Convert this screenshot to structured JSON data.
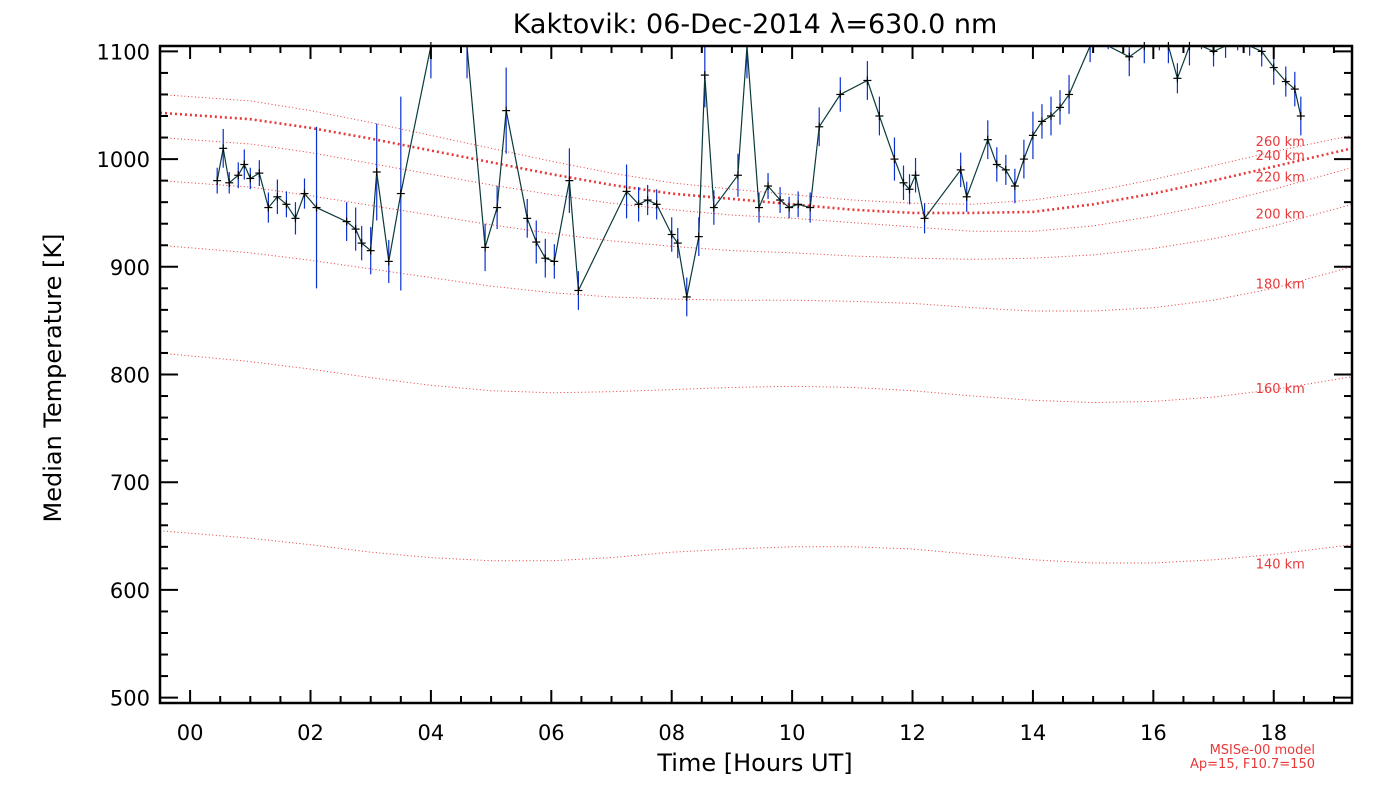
{
  "chart_data": {
    "type": "line",
    "title": "Kaktovik: 06-Dec-2014 λ=630.0 nm",
    "xlabel": "Time [Hours UT]",
    "ylabel": "Median Temperature [K]",
    "xlim": [
      -0.5,
      19.3
    ],
    "ylim": [
      495,
      1105
    ],
    "x_ticks": [
      0,
      2,
      4,
      6,
      8,
      10,
      12,
      14,
      16,
      18
    ],
    "x_tick_labels": [
      "00",
      "02",
      "04",
      "06",
      "08",
      "10",
      "12",
      "14",
      "16",
      "18"
    ],
    "y_ticks": [
      500,
      600,
      700,
      800,
      900,
      1000,
      1100
    ],
    "y_tick_labels": [
      "500",
      "600",
      "700",
      "800",
      "900",
      "1000",
      "1100"
    ],
    "grid": false,
    "colors": {
      "observed": "#0a2fd0",
      "connector": "#0b3a3a",
      "markers": "#000000",
      "model": "#e8393a"
    },
    "series": [
      {
        "style": "observed with error bars",
        "x": [
          0.45,
          0.55,
          0.65,
          0.8,
          0.9,
          1.0,
          1.15,
          1.3,
          1.45,
          1.6,
          1.75,
          1.9,
          2.1,
          2.6,
          2.75,
          2.85,
          3.0,
          3.1,
          3.3,
          3.5,
          4.0,
          4.6,
          4.9,
          5.1,
          5.25,
          5.6,
          5.75,
          5.9,
          6.05,
          6.3,
          6.45,
          7.25,
          7.45,
          7.6,
          7.75,
          8.0,
          8.1,
          8.25,
          8.45,
          8.55,
          8.7,
          9.1,
          9.25,
          9.45,
          9.6,
          9.8,
          9.95,
          10.1,
          10.3,
          10.45,
          10.8,
          11.25,
          11.45,
          11.7,
          11.85,
          11.95,
          12.05,
          12.2,
          12.8,
          12.9,
          13.25,
          13.4,
          13.55,
          13.7,
          13.85,
          14.0,
          14.15,
          14.3,
          14.45,
          14.6,
          14.95,
          15.25,
          15.6,
          15.85,
          16.1,
          16.25,
          16.4,
          16.6,
          16.8,
          17.0,
          17.2,
          17.4,
          17.6,
          17.8,
          18.0,
          18.2,
          18.35,
          18.45
        ],
        "y": [
          980,
          1010,
          978,
          985,
          995,
          982,
          987,
          955,
          965,
          958,
          945,
          968,
          955,
          942,
          935,
          922,
          915,
          988,
          905,
          968,
          1105,
          1115,
          918,
          955,
          1045,
          945,
          923,
          908,
          905,
          980,
          878,
          970,
          958,
          962,
          958,
          930,
          922,
          872,
          928,
          1078,
          955,
          985,
          1115,
          955,
          975,
          962,
          955,
          958,
          955,
          1030,
          1060,
          1073,
          1040,
          1000,
          978,
          972,
          985,
          945,
          990,
          965,
          1018,
          995,
          990,
          975,
          1000,
          1022,
          1035,
          1040,
          1048,
          1060,
          1110,
          1120,
          1095,
          1105,
          1115,
          1105,
          1075,
          1105,
          1118,
          1100,
          1110,
          1115,
          1110,
          1100,
          1085,
          1072,
          1065,
          1040
        ],
        "error": [
          12,
          18,
          10,
          12,
          14,
          10,
          12,
          14,
          16,
          12,
          15,
          14,
          75,
          18,
          20,
          16,
          22,
          45,
          20,
          90,
          30,
          40,
          22,
          20,
          40,
          18,
          20,
          18,
          16,
          30,
          18,
          25,
          16,
          14,
          14,
          16,
          14,
          18,
          18,
          30,
          16,
          20,
          40,
          14,
          12,
          12,
          10,
          12,
          14,
          18,
          16,
          18,
          18,
          20,
          16,
          14,
          16,
          14,
          16,
          14,
          18,
          16,
          14,
          16,
          18,
          22,
          16,
          18,
          16,
          18,
          20,
          18,
          18,
          16,
          14,
          16,
          14,
          18,
          16,
          14,
          16,
          14,
          14,
          14,
          16,
          14,
          16,
          18
        ]
      },
      {
        "name": "140 km",
        "style": "model",
        "x": [
          -0.5,
          1,
          2,
          3,
          4,
          5,
          6,
          7,
          8,
          9,
          10,
          11,
          12,
          13,
          14,
          15,
          16,
          17,
          18,
          19.3
        ],
        "y": [
          655,
          648,
          642,
          635,
          630,
          627,
          627,
          630,
          635,
          638,
          640,
          640,
          638,
          633,
          628,
          625,
          625,
          628,
          633,
          642
        ]
      },
      {
        "name": "160 km",
        "style": "model",
        "x": [
          -0.5,
          1,
          2,
          3,
          4,
          5,
          6,
          7,
          8,
          9,
          10,
          11,
          12,
          13,
          14,
          15,
          16,
          17,
          18,
          19.3
        ],
        "y": [
          820,
          812,
          805,
          797,
          790,
          785,
          783,
          784,
          786,
          788,
          789,
          788,
          785,
          780,
          776,
          774,
          775,
          779,
          786,
          798
        ]
      },
      {
        "name": "180 km",
        "style": "model",
        "x": [
          -0.5,
          1,
          2,
          3,
          4,
          5,
          6,
          7,
          8,
          9,
          10,
          11,
          12,
          13,
          14,
          15,
          16,
          17,
          18,
          19.3
        ],
        "y": [
          920,
          913,
          906,
          898,
          890,
          882,
          876,
          872,
          870,
          869,
          869,
          868,
          866,
          862,
          859,
          859,
          862,
          869,
          880,
          900
        ]
      },
      {
        "name": "200 km",
        "style": "model",
        "x": [
          -0.5,
          1,
          2,
          3,
          4,
          5,
          6,
          7,
          8,
          9,
          10,
          11,
          12,
          13,
          14,
          15,
          16,
          17,
          18,
          19.3
        ],
        "y": [
          980,
          974,
          966,
          957,
          948,
          939,
          931,
          924,
          919,
          915,
          913,
          910,
          908,
          907,
          908,
          911,
          917,
          926,
          938,
          958
        ]
      },
      {
        "name": "220 km",
        "style": "model",
        "x": [
          -0.5,
          1,
          2,
          3,
          4,
          5,
          6,
          7,
          8,
          9,
          10,
          11,
          12,
          13,
          14,
          15,
          16,
          17,
          18,
          19.3
        ],
        "y": [
          1020,
          1014,
          1006,
          996,
          986,
          976,
          967,
          959,
          953,
          948,
          945,
          941,
          937,
          933,
          933,
          938,
          947,
          958,
          972,
          992
        ]
      },
      {
        "name": "240 km",
        "style": "model-bold",
        "x": [
          -0.5,
          1,
          2,
          3,
          4,
          5,
          6,
          7,
          8,
          9,
          10,
          11,
          12,
          13,
          14,
          15,
          16,
          17,
          18,
          19.3
        ],
        "y": [
          1043,
          1037,
          1029,
          1019,
          1008,
          997,
          986,
          976,
          968,
          963,
          958,
          953,
          950,
          950,
          951,
          958,
          968,
          980,
          993,
          1010
        ]
      },
      {
        "name": "260 km",
        "style": "model",
        "x": [
          -0.5,
          1,
          2,
          3,
          4,
          5,
          6,
          7,
          8,
          9,
          10,
          11,
          12,
          13,
          14,
          15,
          16,
          17,
          18,
          19.3
        ],
        "y": [
          1060,
          1054,
          1045,
          1034,
          1022,
          1010,
          998,
          987,
          978,
          972,
          967,
          962,
          959,
          958,
          962,
          970,
          981,
          994,
          1007,
          1022
        ]
      }
    ],
    "curve_labels": [
      {
        "text": "260 km",
        "x": 17.7,
        "y": 1012
      },
      {
        "text": "240 km",
        "x": 17.7,
        "y": 999
      },
      {
        "text": "220 km",
        "x": 17.7,
        "y": 979
      },
      {
        "text": "200 km",
        "x": 17.7,
        "y": 945
      },
      {
        "text": "180 km",
        "x": 17.7,
        "y": 880
      },
      {
        "text": "160 km",
        "x": 17.7,
        "y": 783
      },
      {
        "text": "140 km",
        "x": 17.7,
        "y": 620
      }
    ],
    "annotation": [
      "MSISe-00 model",
      "Ap=15, F10.7=150"
    ]
  }
}
